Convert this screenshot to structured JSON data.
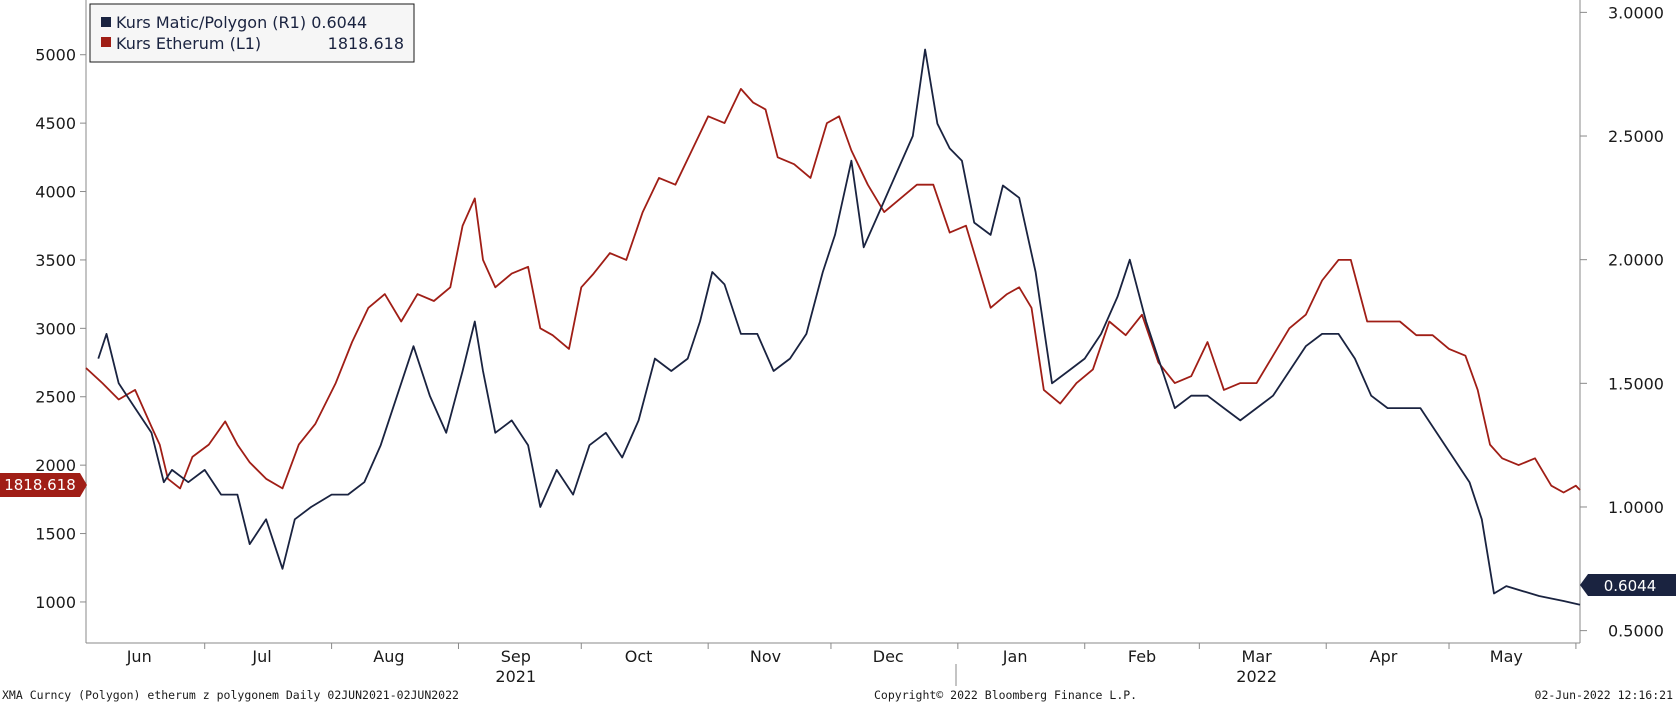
{
  "chart_data": {
    "type": "line",
    "x_range": [
      "2021-06-02",
      "2022-06-02"
    ],
    "left_axis": {
      "ticks": [
        1000,
        1500,
        2000,
        2500,
        3000,
        3500,
        4000,
        4500,
        5000
      ],
      "ylim": [
        700,
        5400
      ]
    },
    "right_axis": {
      "ticks": [
        "0.5000",
        "1.0000",
        "1.5000",
        "2.0000",
        "2.5000",
        "3.0000"
      ],
      "ylim": [
        0.45,
        3.05
      ]
    },
    "x_ticks": [
      {
        "label": "Jun",
        "date": "2021-06-15"
      },
      {
        "label": "Jul",
        "date": "2021-07-15"
      },
      {
        "label": "Aug",
        "date": "2021-08-15"
      },
      {
        "label": "Sep",
        "date": "2021-09-15"
      },
      {
        "label": "Oct",
        "date": "2021-10-15"
      },
      {
        "label": "Nov",
        "date": "2021-11-15"
      },
      {
        "label": "Dec",
        "date": "2021-12-15"
      },
      {
        "label": "Jan",
        "date": "2022-01-15"
      },
      {
        "label": "Feb",
        "date": "2022-02-15"
      },
      {
        "label": "Mar",
        "date": "2022-03-15"
      },
      {
        "label": "Apr",
        "date": "2022-04-15"
      },
      {
        "label": "May",
        "date": "2022-05-15"
      }
    ],
    "year_labels": [
      {
        "label": "2021",
        "date": "2021-09-15"
      },
      {
        "label": "2022",
        "date": "2022-03-15"
      }
    ],
    "grid": false,
    "legend_position": "top-left",
    "series": [
      {
        "name": "Kurs Etherum (L1)",
        "last_label": "1818.618",
        "axis": "left",
        "color": "#a01e16",
        "points": [
          [
            "2021-06-02",
            2710
          ],
          [
            "2021-06-06",
            2600
          ],
          [
            "2021-06-10",
            2480
          ],
          [
            "2021-06-14",
            2550
          ],
          [
            "2021-06-18",
            2280
          ],
          [
            "2021-06-20",
            2150
          ],
          [
            "2021-06-22",
            1900
          ],
          [
            "2021-06-25",
            1830
          ],
          [
            "2021-06-28",
            2060
          ],
          [
            "2021-07-02",
            2150
          ],
          [
            "2021-07-06",
            2320
          ],
          [
            "2021-07-09",
            2150
          ],
          [
            "2021-07-12",
            2020
          ],
          [
            "2021-07-16",
            1900
          ],
          [
            "2021-07-20",
            1830
          ],
          [
            "2021-07-24",
            2150
          ],
          [
            "2021-07-28",
            2300
          ],
          [
            "2021-08-02",
            2600
          ],
          [
            "2021-08-06",
            2900
          ],
          [
            "2021-08-10",
            3150
          ],
          [
            "2021-08-14",
            3250
          ],
          [
            "2021-08-18",
            3050
          ],
          [
            "2021-08-22",
            3250
          ],
          [
            "2021-08-26",
            3200
          ],
          [
            "2021-08-30",
            3300
          ],
          [
            "2021-09-02",
            3750
          ],
          [
            "2021-09-05",
            3950
          ],
          [
            "2021-09-07",
            3500
          ],
          [
            "2021-09-10",
            3300
          ],
          [
            "2021-09-14",
            3400
          ],
          [
            "2021-09-18",
            3450
          ],
          [
            "2021-09-21",
            3000
          ],
          [
            "2021-09-24",
            2950
          ],
          [
            "2021-09-28",
            2850
          ],
          [
            "2021-10-01",
            3300
          ],
          [
            "2021-10-04",
            3400
          ],
          [
            "2021-10-08",
            3550
          ],
          [
            "2021-10-12",
            3500
          ],
          [
            "2021-10-16",
            3850
          ],
          [
            "2021-10-20",
            4100
          ],
          [
            "2021-10-24",
            4050
          ],
          [
            "2021-10-28",
            4300
          ],
          [
            "2021-11-01",
            4550
          ],
          [
            "2021-11-05",
            4500
          ],
          [
            "2021-11-09",
            4750
          ],
          [
            "2021-11-12",
            4650
          ],
          [
            "2021-11-15",
            4600
          ],
          [
            "2021-11-18",
            4250
          ],
          [
            "2021-11-22",
            4200
          ],
          [
            "2021-11-26",
            4100
          ],
          [
            "2021-11-30",
            4500
          ],
          [
            "2021-12-03",
            4550
          ],
          [
            "2021-12-06",
            4300
          ],
          [
            "2021-12-10",
            4050
          ],
          [
            "2021-12-14",
            3850
          ],
          [
            "2021-12-18",
            3950
          ],
          [
            "2021-12-22",
            4050
          ],
          [
            "2021-12-26",
            4050
          ],
          [
            "2021-12-30",
            3700
          ],
          [
            "2022-01-03",
            3750
          ],
          [
            "2022-01-06",
            3450
          ],
          [
            "2022-01-09",
            3150
          ],
          [
            "2022-01-13",
            3250
          ],
          [
            "2022-01-16",
            3300
          ],
          [
            "2022-01-19",
            3150
          ],
          [
            "2022-01-22",
            2550
          ],
          [
            "2022-01-26",
            2450
          ],
          [
            "2022-01-30",
            2600
          ],
          [
            "2022-02-03",
            2700
          ],
          [
            "2022-02-07",
            3050
          ],
          [
            "2022-02-11",
            2950
          ],
          [
            "2022-02-15",
            3100
          ],
          [
            "2022-02-19",
            2750
          ],
          [
            "2022-02-23",
            2600
          ],
          [
            "2022-02-27",
            2650
          ],
          [
            "2022-03-03",
            2900
          ],
          [
            "2022-03-07",
            2550
          ],
          [
            "2022-03-11",
            2600
          ],
          [
            "2022-03-15",
            2600
          ],
          [
            "2022-03-19",
            2800
          ],
          [
            "2022-03-23",
            3000
          ],
          [
            "2022-03-27",
            3100
          ],
          [
            "2022-03-31",
            3350
          ],
          [
            "2022-04-04",
            3500
          ],
          [
            "2022-04-07",
            3500
          ],
          [
            "2022-04-11",
            3050
          ],
          [
            "2022-04-15",
            3050
          ],
          [
            "2022-04-19",
            3050
          ],
          [
            "2022-04-23",
            2950
          ],
          [
            "2022-04-27",
            2950
          ],
          [
            "2022-05-01",
            2850
          ],
          [
            "2022-05-05",
            2800
          ],
          [
            "2022-05-08",
            2550
          ],
          [
            "2022-05-11",
            2150
          ],
          [
            "2022-05-14",
            2050
          ],
          [
            "2022-05-18",
            2000
          ],
          [
            "2022-05-22",
            2050
          ],
          [
            "2022-05-26",
            1850
          ],
          [
            "2022-05-29",
            1800
          ],
          [
            "2022-06-01",
            1850
          ],
          [
            "2022-06-02",
            1818.618
          ]
        ]
      },
      {
        "name": "Kurs Matic/Polygon (R1)",
        "last_label": "0.6044",
        "axis": "right",
        "color": "#1a2340",
        "points": [
          [
            "2021-06-05",
            1.6
          ],
          [
            "2021-06-07",
            1.7
          ],
          [
            "2021-06-10",
            1.5
          ],
          [
            "2021-06-14",
            1.4
          ],
          [
            "2021-06-18",
            1.3
          ],
          [
            "2021-06-21",
            1.1
          ],
          [
            "2021-06-23",
            1.15
          ],
          [
            "2021-06-27",
            1.1
          ],
          [
            "2021-07-01",
            1.15
          ],
          [
            "2021-07-05",
            1.05
          ],
          [
            "2021-07-09",
            1.05
          ],
          [
            "2021-07-12",
            0.85
          ],
          [
            "2021-07-16",
            0.95
          ],
          [
            "2021-07-20",
            0.75
          ],
          [
            "2021-07-23",
            0.95
          ],
          [
            "2021-07-27",
            1.0
          ],
          [
            "2021-08-01",
            1.05
          ],
          [
            "2021-08-05",
            1.05
          ],
          [
            "2021-08-09",
            1.1
          ],
          [
            "2021-08-13",
            1.25
          ],
          [
            "2021-08-17",
            1.45
          ],
          [
            "2021-08-21",
            1.65
          ],
          [
            "2021-08-25",
            1.45
          ],
          [
            "2021-08-29",
            1.3
          ],
          [
            "2021-09-02",
            1.55
          ],
          [
            "2021-09-05",
            1.75
          ],
          [
            "2021-09-07",
            1.55
          ],
          [
            "2021-09-10",
            1.3
          ],
          [
            "2021-09-14",
            1.35
          ],
          [
            "2021-09-18",
            1.25
          ],
          [
            "2021-09-21",
            1.0
          ],
          [
            "2021-09-25",
            1.15
          ],
          [
            "2021-09-29",
            1.05
          ],
          [
            "2021-10-03",
            1.25
          ],
          [
            "2021-10-07",
            1.3
          ],
          [
            "2021-10-11",
            1.2
          ],
          [
            "2021-10-15",
            1.35
          ],
          [
            "2021-10-19",
            1.6
          ],
          [
            "2021-10-23",
            1.55
          ],
          [
            "2021-10-27",
            1.6
          ],
          [
            "2021-10-30",
            1.75
          ],
          [
            "2021-11-02",
            1.95
          ],
          [
            "2021-11-05",
            1.9
          ],
          [
            "2021-11-09",
            1.7
          ],
          [
            "2021-11-13",
            1.7
          ],
          [
            "2021-11-17",
            1.55
          ],
          [
            "2021-11-21",
            1.6
          ],
          [
            "2021-11-25",
            1.7
          ],
          [
            "2021-11-29",
            1.95
          ],
          [
            "2021-12-02",
            2.1
          ],
          [
            "2021-12-06",
            2.4
          ],
          [
            "2021-12-09",
            2.05
          ],
          [
            "2021-12-13",
            2.2
          ],
          [
            "2021-12-17",
            2.35
          ],
          [
            "2021-12-21",
            2.5
          ],
          [
            "2021-12-24",
            2.85
          ],
          [
            "2021-12-27",
            2.55
          ],
          [
            "2021-12-30",
            2.45
          ],
          [
            "2022-01-02",
            2.4
          ],
          [
            "2022-01-05",
            2.15
          ],
          [
            "2022-01-09",
            2.1
          ],
          [
            "2022-01-12",
            2.3
          ],
          [
            "2022-01-16",
            2.25
          ],
          [
            "2022-01-20",
            1.95
          ],
          [
            "2022-01-24",
            1.5
          ],
          [
            "2022-01-28",
            1.55
          ],
          [
            "2022-02-01",
            1.6
          ],
          [
            "2022-02-05",
            1.7
          ],
          [
            "2022-02-09",
            1.85
          ],
          [
            "2022-02-12",
            2.0
          ],
          [
            "2022-02-16",
            1.75
          ],
          [
            "2022-02-19",
            1.6
          ],
          [
            "2022-02-23",
            1.4
          ],
          [
            "2022-02-27",
            1.45
          ],
          [
            "2022-03-03",
            1.45
          ],
          [
            "2022-03-07",
            1.4
          ],
          [
            "2022-03-11",
            1.35
          ],
          [
            "2022-03-15",
            1.4
          ],
          [
            "2022-03-19",
            1.45
          ],
          [
            "2022-03-23",
            1.55
          ],
          [
            "2022-03-27",
            1.65
          ],
          [
            "2022-03-31",
            1.7
          ],
          [
            "2022-04-04",
            1.7
          ],
          [
            "2022-04-08",
            1.6
          ],
          [
            "2022-04-12",
            1.45
          ],
          [
            "2022-04-16",
            1.4
          ],
          [
            "2022-04-20",
            1.4
          ],
          [
            "2022-04-24",
            1.4
          ],
          [
            "2022-04-28",
            1.3
          ],
          [
            "2022-05-02",
            1.2
          ],
          [
            "2022-05-06",
            1.1
          ],
          [
            "2022-05-09",
            0.95
          ],
          [
            "2022-05-12",
            0.65
          ],
          [
            "2022-05-15",
            0.68
          ],
          [
            "2022-05-19",
            0.66
          ],
          [
            "2022-05-23",
            0.64
          ],
          [
            "2022-05-26",
            0.63
          ],
          [
            "2022-05-29",
            0.62
          ],
          [
            "2022-06-02",
            0.6044
          ]
        ]
      }
    ]
  },
  "footer": {
    "left": "XMA Curncy (Polygon) etherum z polygonem  Daily 02JUN2021-02JUN2022",
    "center": "Copyright© 2022 Bloomberg Finance L.P.",
    "right": "02-Jun-2022 12:16:21"
  }
}
